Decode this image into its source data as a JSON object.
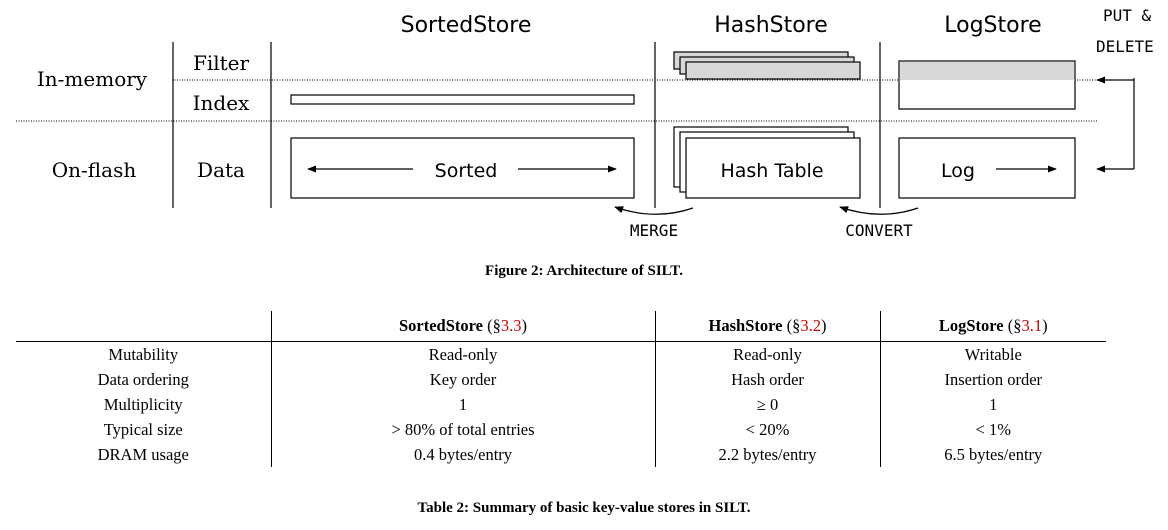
{
  "figure": {
    "stores": {
      "sorted": "SortedStore",
      "hash": "HashStore",
      "log": "LogStore"
    },
    "put_label_1": "PUT &",
    "put_label_2": "DELETE",
    "tier_memory": "In-memory",
    "tier_flash": "On-flash",
    "row_filter": "Filter",
    "row_index": "Index",
    "row_data": "Data",
    "sorted_box": "Sorted",
    "hash_box": "Hash Table",
    "log_box": "Log",
    "merge": "MERGE",
    "convert": "CONVERT",
    "caption": "Figure 2: Architecture of SILT."
  },
  "table": {
    "headers": [
      {
        "name": "SortedStore",
        "open": " (§",
        "ref": "3.3",
        "close": ")"
      },
      {
        "name": "HashStore",
        "open": " (§",
        "ref": "3.2",
        "close": ")"
      },
      {
        "name": "LogStore",
        "open": " (§",
        "ref": "3.1",
        "close": ")"
      }
    ],
    "rows": [
      [
        "Mutability",
        "Read-only",
        "Read-only",
        "Writable"
      ],
      [
        "Data ordering",
        "Key order",
        "Hash order",
        "Insertion order"
      ],
      [
        "Multiplicity",
        "1",
        "≥ 0",
        "1"
      ],
      [
        "Typical size",
        "> 80% of total entries",
        "< 20%",
        "< 1%"
      ],
      [
        "DRAM usage",
        "0.4 bytes/entry",
        "2.2 bytes/entry",
        "6.5 bytes/entry"
      ]
    ],
    "caption": "Table 2: Summary of basic key-value stores in SILT."
  }
}
